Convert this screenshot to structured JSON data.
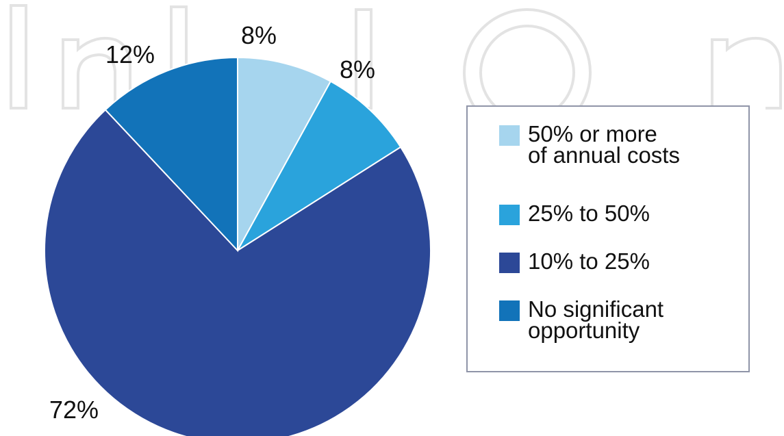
{
  "chart_data": {
    "type": "pie",
    "title": "",
    "slices": [
      {
        "label": "50% or more of annual costs",
        "value": 8,
        "display": "8%",
        "color": "#a6d5ee"
      },
      {
        "label": "25% to 50%",
        "value": 8,
        "display": "8%",
        "color": "#2aa3dc"
      },
      {
        "label": "10% to 25%",
        "value": 72,
        "display": "72%",
        "color": "#2c4897"
      },
      {
        "label": "No significant opportunity",
        "value": 12,
        "display": "12%",
        "color": "#1273b9"
      }
    ],
    "draw_order": [
      0,
      1,
      2,
      3
    ],
    "start_direction": "top-center, clockwise",
    "legend_position": "right",
    "legend_entries": [
      {
        "line1": "50% or more",
        "line2": "of annual costs",
        "color": "#a6d5ee"
      },
      {
        "line1": "25% to 50%",
        "line2": "",
        "color": "#2aa3dc"
      },
      {
        "line1": "10% to 25%",
        "line2": "",
        "color": "#2c4897"
      },
      {
        "line1": "No significant",
        "line2": "opportunity",
        "color": "#1273b9"
      }
    ]
  }
}
